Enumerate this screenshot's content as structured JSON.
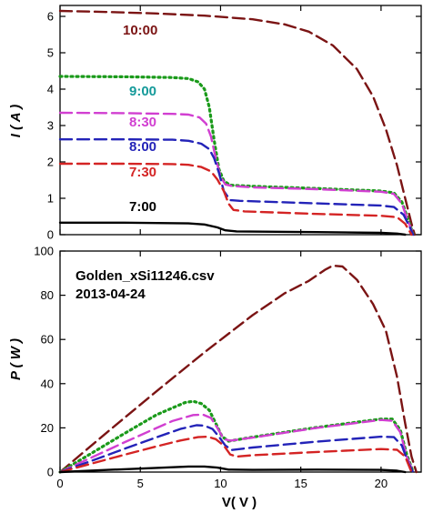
{
  "colors": {
    "t1000": "#7b1414",
    "t0900": "#1a9a1a",
    "t0830": "#d13fd1",
    "t0800": "#2323b8",
    "t0730": "#d42424",
    "t0700": "#000000",
    "label0900": "#159a9a"
  },
  "chart_data": [
    {
      "type": "line",
      "ylabel": "I ( A )",
      "xlim": [
        0,
        22.5
      ],
      "ylim": [
        0,
        6.3
      ],
      "xticks": [
        0,
        5,
        10,
        15,
        20
      ],
      "yticks": [
        0,
        1,
        2,
        3,
        4,
        5,
        6
      ],
      "ytick_labels": [
        "0",
        "1",
        "2",
        "3",
        "4",
        "5",
        "6"
      ],
      "series": [
        {
          "name": "10:00",
          "color": "#7b1414",
          "dash": "long",
          "points": [
            [
              0,
              6.15
            ],
            [
              3,
              6.12
            ],
            [
              6,
              6.08
            ],
            [
              9,
              6.02
            ],
            [
              12,
              5.92
            ],
            [
              14,
              5.78
            ],
            [
              15.5,
              5.58
            ],
            [
              17,
              5.2
            ],
            [
              18.5,
              4.55
            ],
            [
              19.5,
              3.8
            ],
            [
              20.3,
              2.9
            ],
            [
              21,
              1.9
            ],
            [
              21.5,
              1.0
            ],
            [
              21.9,
              0.3
            ],
            [
              22.1,
              0.0
            ]
          ]
        },
        {
          "name": "9:00",
          "color": "#1a9a1a",
          "dash": "dot",
          "points": [
            [
              0,
              4.35
            ],
            [
              4,
              4.34
            ],
            [
              7,
              4.32
            ],
            [
              8,
              4.29
            ],
            [
              8.6,
              4.2
            ],
            [
              9,
              4.0
            ],
            [
              9.3,
              3.5
            ],
            [
              9.6,
              2.6
            ],
            [
              9.9,
              1.8
            ],
            [
              10.2,
              1.48
            ],
            [
              10.6,
              1.36
            ],
            [
              12,
              1.33
            ],
            [
              16,
              1.27
            ],
            [
              20,
              1.2
            ],
            [
              20.8,
              1.15
            ],
            [
              21.3,
              0.9
            ],
            [
              21.7,
              0.4
            ],
            [
              22.0,
              0.0
            ]
          ]
        },
        {
          "name": "8:30",
          "color": "#d13fd1",
          "dash": "long",
          "points": [
            [
              0,
              3.35
            ],
            [
              4,
              3.34
            ],
            [
              7,
              3.32
            ],
            [
              8,
              3.3
            ],
            [
              8.7,
              3.22
            ],
            [
              9.1,
              3.05
            ],
            [
              9.4,
              2.7
            ],
            [
              9.7,
              2.1
            ],
            [
              10.0,
              1.6
            ],
            [
              10.3,
              1.38
            ],
            [
              10.7,
              1.34
            ],
            [
              12,
              1.3
            ],
            [
              16,
              1.25
            ],
            [
              20,
              1.18
            ],
            [
              20.8,
              1.12
            ],
            [
              21.3,
              0.85
            ],
            [
              21.7,
              0.35
            ],
            [
              22.0,
              0.0
            ]
          ]
        },
        {
          "name": "8:00",
          "color": "#2323b8",
          "dash": "long",
          "points": [
            [
              0,
              2.62
            ],
            [
              4,
              2.62
            ],
            [
              7,
              2.61
            ],
            [
              8,
              2.58
            ],
            [
              8.8,
              2.5
            ],
            [
              9.3,
              2.35
            ],
            [
              9.6,
              2.1
            ],
            [
              9.9,
              1.7
            ],
            [
              10.2,
              1.2
            ],
            [
              10.6,
              0.95
            ],
            [
              11.2,
              0.93
            ],
            [
              16,
              0.86
            ],
            [
              20,
              0.8
            ],
            [
              20.8,
              0.76
            ],
            [
              21.4,
              0.55
            ],
            [
              21.8,
              0.2
            ],
            [
              22.0,
              0.0
            ]
          ]
        },
        {
          "name": "7:30",
          "color": "#d42424",
          "dash": "long",
          "points": [
            [
              0,
              1.95
            ],
            [
              4,
              1.95
            ],
            [
              7,
              1.94
            ],
            [
              8,
              1.92
            ],
            [
              8.8,
              1.86
            ],
            [
              9.4,
              1.74
            ],
            [
              9.8,
              1.52
            ],
            [
              10.2,
              1.2
            ],
            [
              10.5,
              0.85
            ],
            [
              10.8,
              0.68
            ],
            [
              11.5,
              0.64
            ],
            [
              16,
              0.57
            ],
            [
              20,
              0.52
            ],
            [
              21,
              0.48
            ],
            [
              21.5,
              0.3
            ],
            [
              21.9,
              0.0
            ]
          ]
        },
        {
          "name": "7:00",
          "color": "#000000",
          "dash": "solid",
          "points": [
            [
              0,
              0.33
            ],
            [
              4,
              0.33
            ],
            [
              8,
              0.31
            ],
            [
              9,
              0.28
            ],
            [
              9.8,
              0.2
            ],
            [
              10.3,
              0.12
            ],
            [
              11,
              0.09
            ],
            [
              16,
              0.07
            ],
            [
              20,
              0.05
            ],
            [
              21,
              0.03
            ],
            [
              21.5,
              0.0
            ]
          ]
        }
      ]
    },
    {
      "type": "line",
      "xlabel": "V( V )",
      "ylabel": "P ( W )",
      "annotation": [
        "Golden_xSi11246.csv",
        "2013-04-24"
      ],
      "xlim": [
        0,
        22.5
      ],
      "ylim": [
        0,
        100
      ],
      "xticks": [
        0,
        5,
        10,
        15,
        20
      ],
      "xtick_labels": [
        "0",
        "5",
        "10",
        "15",
        "20"
      ],
      "yticks": [
        0,
        20,
        40,
        60,
        80,
        100
      ],
      "ytick_labels": [
        "0",
        "20",
        "40",
        "60",
        "80",
        "100"
      ],
      "series": [
        {
          "name": "10:00",
          "color": "#7b1414",
          "dash": "long",
          "points": [
            [
              0,
              0
            ],
            [
              3,
              18.4
            ],
            [
              6,
              36.5
            ],
            [
              9,
              54.2
            ],
            [
              12,
              71
            ],
            [
              14,
              80.9
            ],
            [
              15.5,
              86.5
            ],
            [
              16.5,
              91.5
            ],
            [
              17,
              93.4
            ],
            [
              17.6,
              93
            ],
            [
              18.5,
              87
            ],
            [
              19.5,
              76
            ],
            [
              20.3,
              64
            ],
            [
              21,
              43
            ],
            [
              21.5,
              22
            ],
            [
              21.9,
              7
            ],
            [
              22.2,
              0
            ]
          ]
        },
        {
          "name": "9:00",
          "color": "#1a9a1a",
          "dash": "dot",
          "points": [
            [
              0,
              0
            ],
            [
              2,
              8.7
            ],
            [
              4,
              17.4
            ],
            [
              6,
              25.9
            ],
            [
              7,
              29
            ],
            [
              7.8,
              31.5
            ],
            [
              8.3,
              32
            ],
            [
              8.8,
              31
            ],
            [
              9.3,
              28
            ],
            [
              9.7,
              22
            ],
            [
              10.1,
              16
            ],
            [
              10.5,
              14
            ],
            [
              12,
              15.8
            ],
            [
              16,
              20.2
            ],
            [
              20,
              24
            ],
            [
              20.7,
              24
            ],
            [
              21.2,
              19
            ],
            [
              21.6,
              8
            ],
            [
              22.0,
              0
            ]
          ]
        },
        {
          "name": "8:30",
          "color": "#d13fd1",
          "dash": "long",
          "points": [
            [
              0,
              0
            ],
            [
              2,
              6.7
            ],
            [
              4,
              13.4
            ],
            [
              6,
              19.9
            ],
            [
              7,
              23.1
            ],
            [
              8.3,
              25.8
            ],
            [
              8.9,
              26
            ],
            [
              9.4,
              24.5
            ],
            [
              9.8,
              20
            ],
            [
              10.2,
              15
            ],
            [
              10.6,
              14.2
            ],
            [
              12,
              15.6
            ],
            [
              16,
              20
            ],
            [
              20,
              23.6
            ],
            [
              20.7,
              23.2
            ],
            [
              21.2,
              18
            ],
            [
              21.6,
              7
            ],
            [
              22.0,
              0
            ]
          ]
        },
        {
          "name": "8:00",
          "color": "#2323b8",
          "dash": "long",
          "points": [
            [
              0,
              0
            ],
            [
              2,
              5.2
            ],
            [
              4,
              10.5
            ],
            [
              6,
              15.7
            ],
            [
              7.5,
              19.5
            ],
            [
              8.5,
              21.2
            ],
            [
              9.0,
              21
            ],
            [
              9.5,
              19.5
            ],
            [
              9.9,
              16
            ],
            [
              10.3,
              12
            ],
            [
              10.7,
              10
            ],
            [
              12,
              11.1
            ],
            [
              16,
              13.8
            ],
            [
              20,
              16
            ],
            [
              20.8,
              15.8
            ],
            [
              21.3,
              12
            ],
            [
              21.7,
              4
            ],
            [
              22.0,
              0
            ]
          ]
        },
        {
          "name": "7:30",
          "color": "#d42424",
          "dash": "long",
          "points": [
            [
              0,
              0
            ],
            [
              2,
              3.9
            ],
            [
              4,
              7.8
            ],
            [
              6,
              11.6
            ],
            [
              7.5,
              14.3
            ],
            [
              8.6,
              15.8
            ],
            [
              9.2,
              16
            ],
            [
              9.7,
              14.9
            ],
            [
              10.2,
              12
            ],
            [
              10.6,
              8
            ],
            [
              11,
              7
            ],
            [
              12,
              7.6
            ],
            [
              16,
              9.1
            ],
            [
              20,
              10.4
            ],
            [
              21,
              10.1
            ],
            [
              21.5,
              7
            ],
            [
              21.9,
              0
            ]
          ]
        },
        {
          "name": "7:00",
          "color": "#000000",
          "dash": "solid",
          "points": [
            [
              0,
              0
            ],
            [
              3,
              1.0
            ],
            [
              6,
              1.9
            ],
            [
              8,
              2.5
            ],
            [
              9,
              2.5
            ],
            [
              9.8,
              2.0
            ],
            [
              10.5,
              1.1
            ],
            [
              12,
              1.0
            ],
            [
              16,
              1.1
            ],
            [
              20,
              1.0
            ],
            [
              21,
              0.6
            ],
            [
              21.5,
              0
            ]
          ]
        }
      ]
    }
  ]
}
